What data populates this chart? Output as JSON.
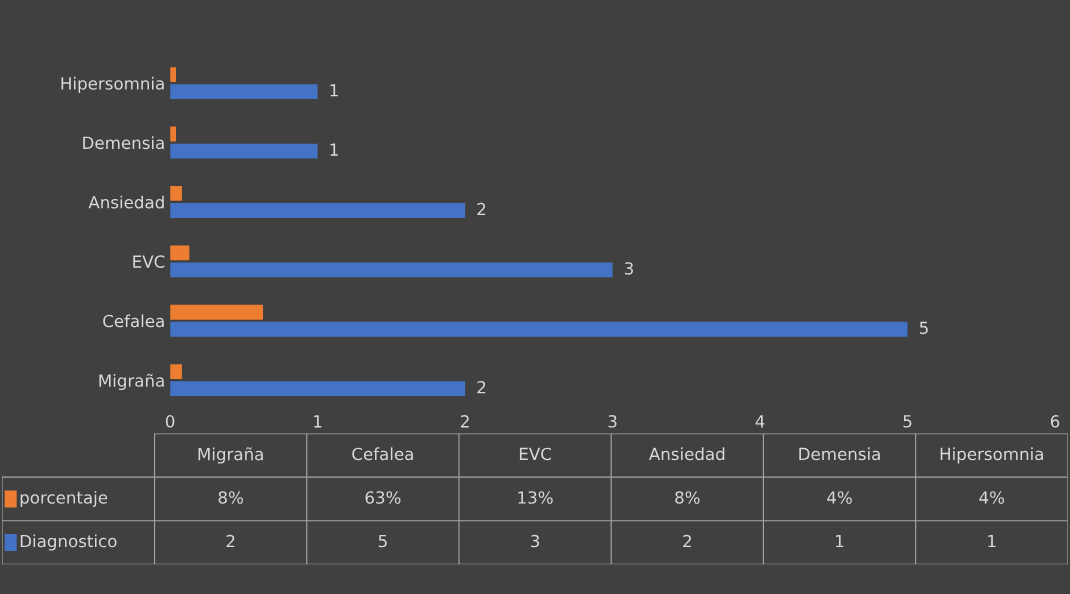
{
  "chart_data": {
    "type": "bar",
    "orientation": "horizontal",
    "categories": [
      "Hipersomnia",
      "Demensia",
      "Ansiedad",
      "EVC",
      "Cefalea",
      "Migraña"
    ],
    "series": [
      {
        "name": "porcentaje",
        "color": "#ed7d31",
        "values": [
          0.04,
          0.04,
          0.08,
          0.13,
          0.63,
          0.08
        ]
      },
      {
        "name": "Diagnostico",
        "color": "#4472c4",
        "values": [
          1,
          1,
          2,
          3,
          5,
          2
        ],
        "value_labels": [
          "1",
          "1",
          "2",
          "3",
          "5",
          "2"
        ]
      }
    ],
    "xlim": [
      0,
      6
    ],
    "xticks": [
      0,
      1,
      2,
      3,
      4,
      5,
      6
    ],
    "grid": false,
    "legend": "bottom",
    "annotations": [
      "8%",
      "63%",
      "13%",
      "8%",
      "4%",
      "4%"
    ]
  }
}
